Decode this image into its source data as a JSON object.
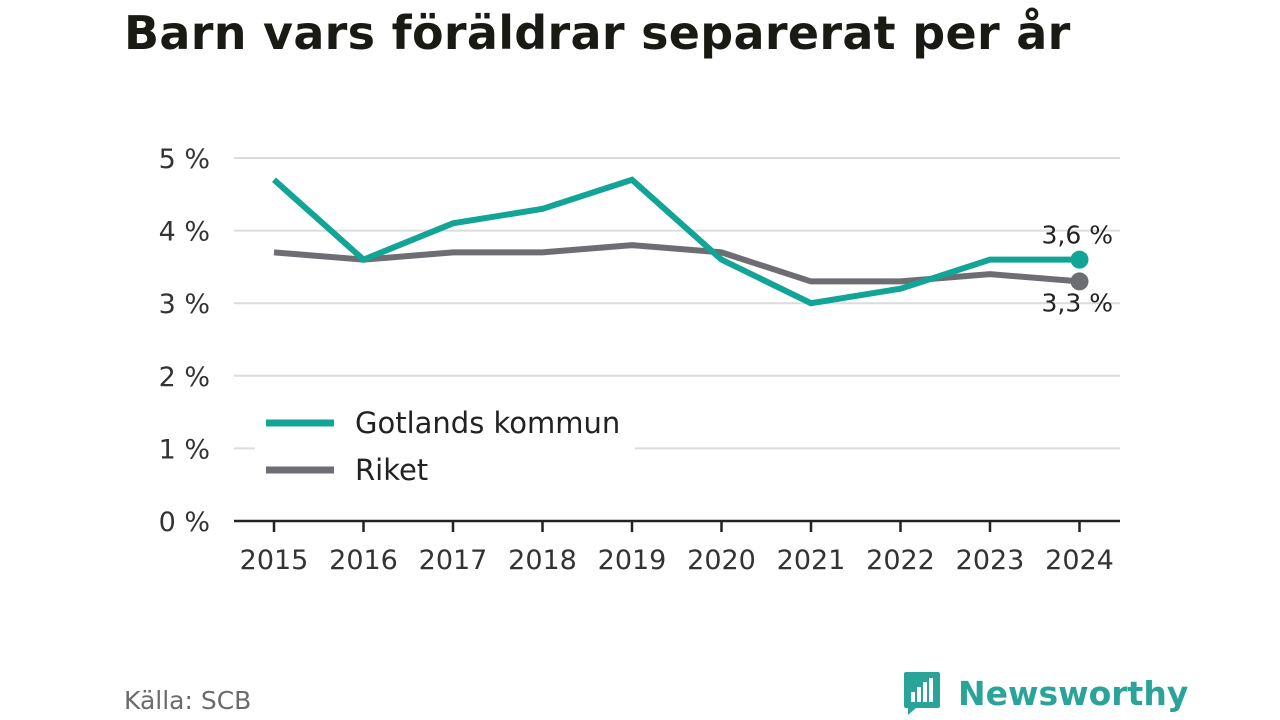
{
  "page": {
    "title": "Barn vars föräldrar separerat per år",
    "source": "Källa: SCB",
    "brand": "Newsworthy"
  },
  "colors": {
    "gotland": "#11a497",
    "riket": "#6d6d74",
    "grid": "#dcdcdc",
    "axis": "#222222",
    "brand": "#2aa398"
  },
  "icons": {
    "brand_logo": "bar-chart-flag-icon"
  },
  "chart_data": {
    "type": "line",
    "title": "Barn vars föräldrar separerat per år",
    "xlabel": "",
    "ylabel": "",
    "categories": [
      "2015",
      "2016",
      "2017",
      "2018",
      "2019",
      "2020",
      "2021",
      "2022",
      "2023",
      "2024"
    ],
    "yticks": [
      0,
      1,
      2,
      3,
      4,
      5
    ],
    "ytick_labels": [
      "0 %",
      "1 %",
      "2 %",
      "3 %",
      "4 %",
      "5 %"
    ],
    "ylim": [
      0,
      5
    ],
    "grid": true,
    "legend_position": "bottom-left",
    "series": [
      {
        "name": "Gotlands kommun",
        "values": [
          4.7,
          3.6,
          4.1,
          4.3,
          4.7,
          3.6,
          3.0,
          3.2,
          3.6,
          3.6
        ],
        "end_label": "3,6 %",
        "color": "#11a497"
      },
      {
        "name": "Riket",
        "values": [
          3.7,
          3.6,
          3.7,
          3.7,
          3.8,
          3.7,
          3.3,
          3.3,
          3.4,
          3.3
        ],
        "end_label": "3,3 %",
        "color": "#6d6d74"
      }
    ]
  }
}
